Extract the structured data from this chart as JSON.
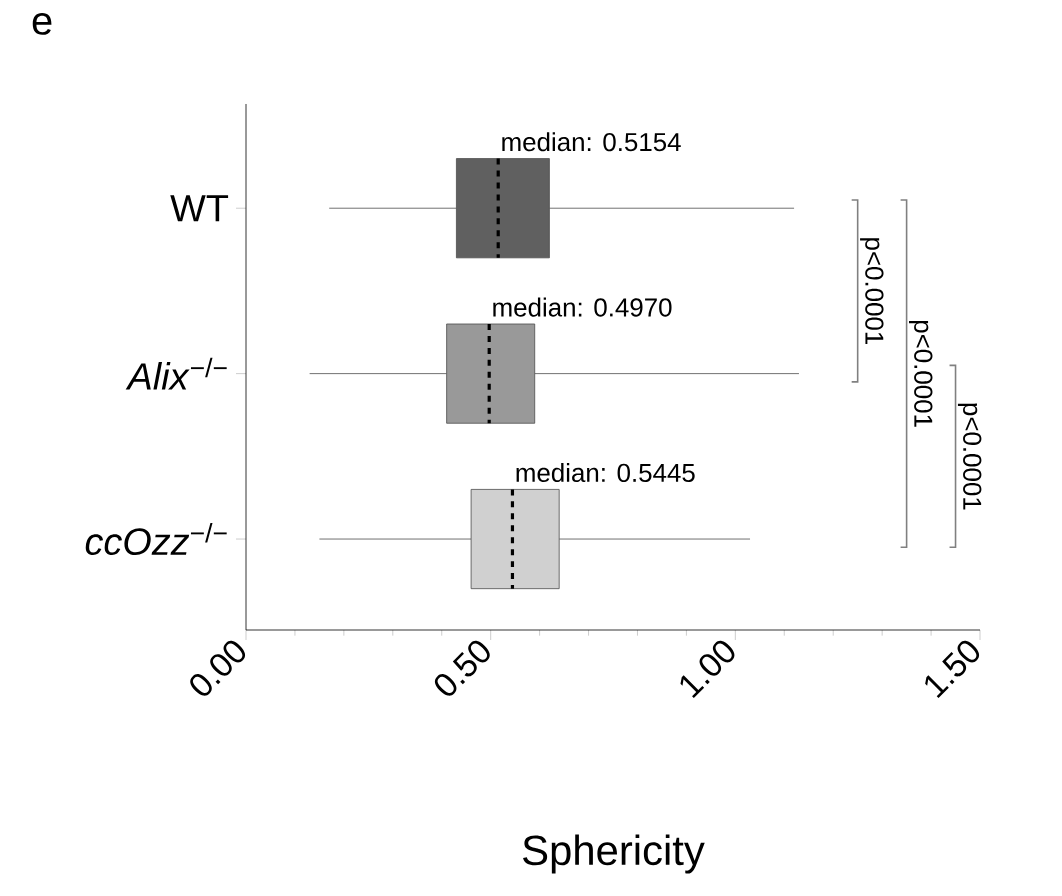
{
  "chart_data": {
    "type": "box",
    "orientation": "horizontal",
    "title": "e",
    "xlabel": "Sphericity",
    "categories": [
      "WT",
      "*Alix*$^{−/−}$",
      "*ccOzz*$^{−/−}$"
    ],
    "colors": [
      "#606060",
      "#999999",
      "#d0d0d0"
    ],
    "boxes": [
      {
        "low": 0.17,
        "q1": 0.43,
        "median": 0.5154,
        "q3": 0.62,
        "high": 1.12
      },
      {
        "low": 0.13,
        "q1": 0.41,
        "median": 0.497,
        "q3": 0.59,
        "high": 1.13
      },
      {
        "low": 0.15,
        "q1": 0.46,
        "median": 0.5445,
        "q3": 0.64,
        "high": 1.03
      }
    ],
    "xlim": [
      0,
      1.5
    ],
    "xticks": [
      {
        "value": 0,
        "label": "0.00"
      },
      {
        "value": 0.5,
        "label": "0.50"
      },
      {
        "value": 1,
        "label": "1.00"
      },
      {
        "value": 1.5,
        "label": "1.50"
      }
    ],
    "annotations": [
      {
        "text": "median: 0.5154",
        "x": 0.5154,
        "y": "WT"
      },
      {
        "text": "median: 0.4970",
        "x": 0.497,
        "y": "*Alix*$^{−/−}$"
      },
      {
        "text": "median: 0.5445",
        "x": 0.5445,
        "y": "*ccOzz*$^{−/−}$"
      },
      "p<0.0001",
      "p<0.0001",
      "p<0.0001"
    ]
  }
}
